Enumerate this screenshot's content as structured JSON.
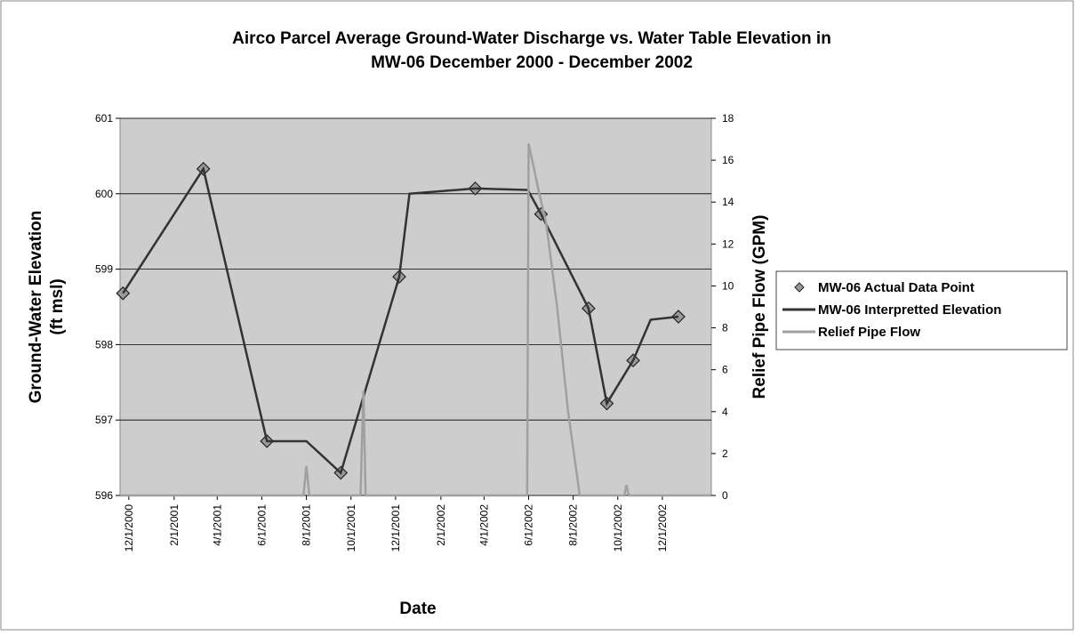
{
  "chart_data": {
    "type": "line",
    "title": [
      "Airco Parcel Average Ground-Water Discharge vs. Water Table Elevation in",
      "MW-06 December 2000 - December 2002"
    ],
    "x_label": "Date",
    "y_label": [
      "Ground-Water Elevation",
      "(ft msl)"
    ],
    "y2_label": "Relief Pipe Flow (GPM)",
    "xlim": [
      "11/19/2000",
      "2/6/2003"
    ],
    "xticks": [
      "12/1/2000",
      "2/1/2001",
      "4/1/2001",
      "6/1/2001",
      "8/1/2001",
      "10/1/2001",
      "12/1/2001",
      "2/1/2002",
      "4/1/2002",
      "6/1/2002",
      "8/1/2002",
      "10/1/2002",
      "12/1/2002"
    ],
    "ylim": [
      596,
      601
    ],
    "yticks": [
      596,
      597,
      598,
      599,
      600,
      601
    ],
    "y2lim": [
      0,
      18
    ],
    "y2ticks": [
      0,
      2,
      4,
      6,
      8,
      10,
      12,
      14,
      16,
      18
    ],
    "grid": true,
    "legend": "right",
    "series": [
      {
        "name": "MW-06 Actual Data Point",
        "color": "#9a9a9a",
        "style": "markers",
        "x": [
          "11/23/2000",
          "3/13/2001",
          "6/8/2001",
          "9/17/2001",
          "12/6/2001",
          "3/20/2002",
          "6/18/2002",
          "8/22/2002",
          "9/16/2002",
          "10/22/2002",
          "12/23/2002"
        ],
        "values": [
          598.68,
          600.33,
          596.72,
          596.3,
          598.9,
          600.07,
          599.73,
          598.48,
          597.22,
          597.79,
          598.37
        ]
      },
      {
        "name": "MW-06 Interpretted Elevation",
        "color": "#333333",
        "style": "line",
        "x": [
          "11/23/2000",
          "3/13/2001",
          "6/8/2001",
          "8/1/2001",
          "9/17/2001",
          "12/6/2001",
          "12/20/2001",
          "3/20/2002",
          "5/31/2002",
          "6/18/2002",
          "8/22/2002",
          "9/16/2002",
          "10/22/2002",
          "11/15/2002",
          "12/23/2002"
        ],
        "values": [
          598.68,
          600.33,
          596.72,
          596.72,
          596.3,
          598.9,
          600.0,
          600.07,
          600.05,
          599.73,
          598.48,
          597.22,
          597.79,
          598.33,
          598.37
        ]
      },
      {
        "name": "Relief Pipe Flow",
        "color": "#a0a0a0",
        "style": "line",
        "axis": "y2",
        "x": [
          "11/19/2000",
          "7/28/2001",
          "8/1/2001",
          "8/5/2001",
          "10/1/2001",
          "10/14/2001",
          "10/18/2001",
          "10/21/2001",
          "5/30/2002",
          "6/1/2002",
          "6/15/2002",
          "6/25/2002",
          "7/10/2002",
          "7/25/2002",
          "8/10/2002",
          "10/10/2002",
          "10/13/2002",
          "10/16/2002",
          "2/6/2003"
        ],
        "values": [
          0,
          0,
          1.4,
          0,
          0,
          0,
          5,
          0,
          0,
          16.8,
          14.5,
          13,
          9,
          4,
          0,
          0,
          0.5,
          0,
          0
        ]
      }
    ]
  }
}
